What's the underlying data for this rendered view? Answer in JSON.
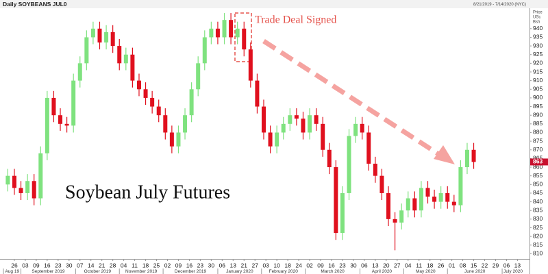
{
  "chart_data": {
    "type": "candlestick",
    "title": "Daily SOYBEANS JUL0",
    "subtitle": "8/21/2019 - 7/14/2020 (NYC)",
    "y_axis_label": [
      "Price",
      "USc",
      "Bsh"
    ],
    "annotations": [
      "Trade Deal Signed",
      "Soybean July Futures"
    ],
    "up_color": "#7fe27f",
    "down_color": "#e0101e",
    "candles": {
      "x": [
        0,
        3,
        6,
        9,
        12,
        15,
        18,
        21,
        24,
        27,
        30,
        33,
        36,
        39,
        42,
        45,
        48,
        51,
        54,
        57,
        60,
        63,
        66,
        69,
        72,
        75,
        78,
        81,
        84,
        87,
        90,
        93,
        96,
        99,
        102,
        105,
        108,
        111,
        114,
        117,
        120,
        123,
        126,
        129,
        132,
        135,
        138,
        141,
        144,
        147,
        150,
        153,
        156,
        159,
        162,
        165,
        168,
        171,
        174,
        177,
        180,
        183,
        186,
        189,
        192,
        195,
        198,
        201,
        204,
        207,
        210,
        213
      ],
      "open": [
        850,
        855,
        848,
        845,
        852,
        842,
        868,
        900,
        890,
        885,
        884,
        910,
        920,
        935,
        940,
        932,
        938,
        930,
        920,
        925,
        910,
        905,
        900,
        895,
        890,
        880,
        872,
        880,
        890,
        905,
        920,
        935,
        940,
        935,
        945,
        935,
        940,
        928,
        910,
        895,
        880,
        872,
        880,
        885,
        890,
        888,
        880,
        890,
        885,
        870,
        860,
        822,
        845,
        878,
        885,
        880,
        862,
        855,
        845,
        830,
        828,
        835,
        842,
        835,
        848,
        843,
        840,
        845,
        840,
        838,
        860,
        870
      ],
      "high": [
        859,
        859,
        852,
        856,
        856,
        872,
        904,
        904,
        894,
        889,
        914,
        924,
        939,
        944,
        944,
        942,
        942,
        934,
        929,
        929,
        914,
        909,
        904,
        899,
        894,
        884,
        884,
        894,
        909,
        924,
        939,
        944,
        944,
        949,
        949,
        944,
        944,
        932,
        914,
        899,
        884,
        884,
        889,
        894,
        894,
        892,
        894,
        894,
        889,
        874,
        864,
        849,
        882,
        889,
        889,
        884,
        866,
        859,
        849,
        834,
        839,
        846,
        846,
        852,
        852,
        847,
        849,
        849,
        844,
        864,
        874,
        874
      ],
      "low": [
        846,
        844,
        841,
        841,
        838,
        838,
        864,
        886,
        881,
        880,
        880,
        906,
        916,
        931,
        928,
        928,
        926,
        916,
        916,
        906,
        901,
        896,
        891,
        886,
        876,
        868,
        868,
        876,
        886,
        901,
        916,
        931,
        931,
        931,
        931,
        931,
        924,
        906,
        891,
        876,
        868,
        868,
        876,
        881,
        884,
        876,
        876,
        881,
        866,
        856,
        818,
        818,
        841,
        874,
        876,
        858,
        851,
        841,
        826,
        812,
        824,
        831,
        831,
        831,
        839,
        836,
        836,
        836,
        834,
        834,
        856,
        859
      ],
      "close": [
        855,
        848,
        845,
        852,
        842,
        868,
        900,
        890,
        885,
        884,
        910,
        920,
        935,
        940,
        932,
        938,
        930,
        920,
        925,
        910,
        905,
        900,
        895,
        890,
        880,
        872,
        880,
        890,
        905,
        920,
        935,
        940,
        935,
        945,
        935,
        940,
        928,
        910,
        895,
        880,
        872,
        880,
        885,
        890,
        888,
        880,
        890,
        885,
        870,
        860,
        822,
        845,
        878,
        885,
        880,
        862,
        855,
        845,
        830,
        828,
        835,
        842,
        835,
        848,
        843,
        840,
        845,
        840,
        838,
        860,
        870,
        863
      ]
    },
    "xlim": [
      -2,
      236
    ],
    "xticks": [
      {
        "value": 3,
        "label": "26"
      },
      {
        "value": 8,
        "label": "03"
      },
      {
        "value": 13,
        "label": "09"
      },
      {
        "value": 18,
        "label": "16"
      },
      {
        "value": 23,
        "label": "23"
      },
      {
        "value": 28,
        "label": "30"
      },
      {
        "value": 33,
        "label": "07"
      },
      {
        "value": 38,
        "label": "14"
      },
      {
        "value": 43,
        "label": "21"
      },
      {
        "value": 48,
        "label": "28"
      },
      {
        "value": 53,
        "label": "04"
      },
      {
        "value": 58,
        "label": "11"
      },
      {
        "value": 63,
        "label": "18"
      },
      {
        "value": 68,
        "label": "25"
      },
      {
        "value": 73,
        "label": "02"
      },
      {
        "value": 78,
        "label": "09"
      },
      {
        "value": 83,
        "label": "16"
      },
      {
        "value": 88,
        "label": "23"
      },
      {
        "value": 93,
        "label": "30"
      },
      {
        "value": 98,
        "label": "06"
      },
      {
        "value": 103,
        "label": "13"
      },
      {
        "value": 108,
        "label": "21"
      },
      {
        "value": 113,
        "label": "27"
      },
      {
        "value": 118,
        "label": "03"
      },
      {
        "value": 123,
        "label": "10"
      },
      {
        "value": 128,
        "label": "18"
      },
      {
        "value": 133,
        "label": "24"
      },
      {
        "value": 138,
        "label": "02"
      },
      {
        "value": 143,
        "label": "09"
      },
      {
        "value": 148,
        "label": "16"
      },
      {
        "value": 153,
        "label": "23"
      },
      {
        "value": 158,
        "label": "30"
      },
      {
        "value": 163,
        "label": "06"
      },
      {
        "value": 168,
        "label": "13"
      },
      {
        "value": 173,
        "label": "20"
      },
      {
        "value": 178,
        "label": "27"
      },
      {
        "value": 183,
        "label": "04"
      },
      {
        "value": 188,
        "label": "11"
      },
      {
        "value": 193,
        "label": "18"
      },
      {
        "value": 198,
        "label": "26"
      },
      {
        "value": 203,
        "label": "01"
      },
      {
        "value": 208,
        "label": "08"
      },
      {
        "value": 213,
        "label": "15"
      },
      {
        "value": 218,
        "label": "22"
      },
      {
        "value": 223,
        "label": "29"
      },
      {
        "value": 228,
        "label": "06"
      },
      {
        "value": 233,
        "label": "13"
      }
    ],
    "months": [
      {
        "value": -2,
        "label": "Aug 19"
      },
      {
        "value": 6,
        "label": "September 2019"
      },
      {
        "value": 31,
        "label": "October 2019"
      },
      {
        "value": 51,
        "label": "November 2019"
      },
      {
        "value": 71,
        "label": "December 2019"
      },
      {
        "value": 96,
        "label": "January 2020"
      },
      {
        "value": 116,
        "label": "February 2020"
      },
      {
        "value": 136,
        "label": "March 2020"
      },
      {
        "value": 161,
        "label": "April 2020"
      },
      {
        "value": 181,
        "label": "May 2020"
      },
      {
        "value": 201,
        "label": "June 2020"
      },
      {
        "value": 226,
        "label": "July 2020"
      }
    ],
    "ylim": [
      807,
      951
    ],
    "yticks": [
      810,
      815,
      820,
      825,
      830,
      835,
      840,
      845,
      850,
      855,
      860,
      865,
      870,
      875,
      880,
      885,
      890,
      895,
      900,
      905,
      910,
      915,
      920,
      925,
      930,
      935,
      940
    ],
    "grid": false
  }
}
